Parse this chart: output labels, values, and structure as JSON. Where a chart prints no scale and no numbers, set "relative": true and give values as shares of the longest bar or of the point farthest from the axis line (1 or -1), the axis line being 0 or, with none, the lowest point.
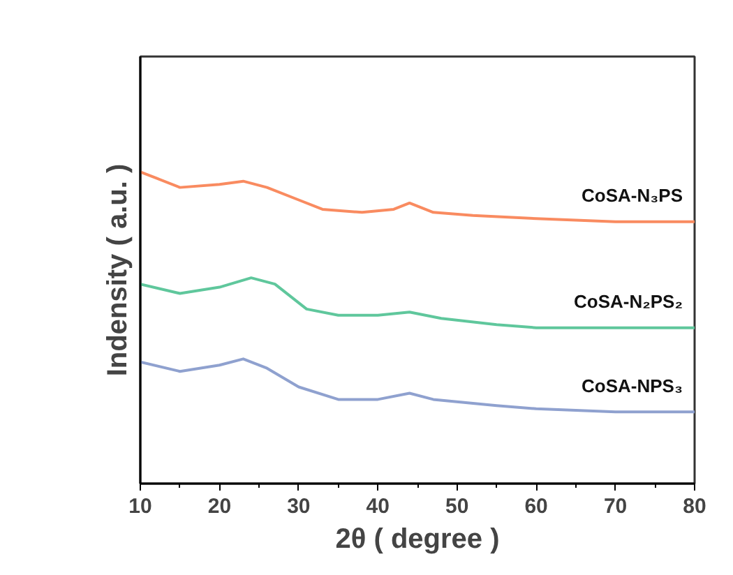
{
  "chart_data": {
    "type": "line",
    "relative": true,
    "xlabel": "2θ ( degree )",
    "ylabel": "Indensity ( a.u. )",
    "xlim": [
      10,
      80
    ],
    "xticks": [
      10,
      20,
      30,
      40,
      50,
      60,
      70,
      80
    ],
    "tick_labels": "x",
    "grid": false,
    "series": [
      {
        "name": "CoSA-N₃PS",
        "color": "#f98b60",
        "x": [
          10,
          12,
          15,
          20,
          23,
          26,
          30,
          33,
          38,
          42,
          44,
          47,
          52,
          60,
          70,
          80
        ],
        "values": [
          1.0,
          0.98,
          0.95,
          0.96,
          0.97,
          0.95,
          0.91,
          0.88,
          0.87,
          0.88,
          0.9,
          0.87,
          0.86,
          0.85,
          0.84,
          0.84
        ]
      },
      {
        "name": "CoSA-N₂PS₂",
        "color": "#5fc79c",
        "x": [
          10,
          15,
          20,
          24,
          27,
          31,
          35,
          40,
          44,
          48,
          55,
          60,
          70,
          80
        ],
        "values": [
          0.64,
          0.61,
          0.63,
          0.66,
          0.64,
          0.56,
          0.54,
          0.54,
          0.55,
          0.53,
          0.51,
          0.5,
          0.5,
          0.5
        ]
      },
      {
        "name": "CoSA-NPS₃",
        "color": "#8fa1cf",
        "x": [
          10,
          15,
          20,
          23,
          26,
          30,
          35,
          40,
          44,
          47,
          55,
          60,
          70,
          80
        ],
        "values": [
          0.39,
          0.36,
          0.38,
          0.4,
          0.37,
          0.31,
          0.27,
          0.27,
          0.29,
          0.27,
          0.25,
          0.24,
          0.23,
          0.23
        ]
      }
    ]
  }
}
